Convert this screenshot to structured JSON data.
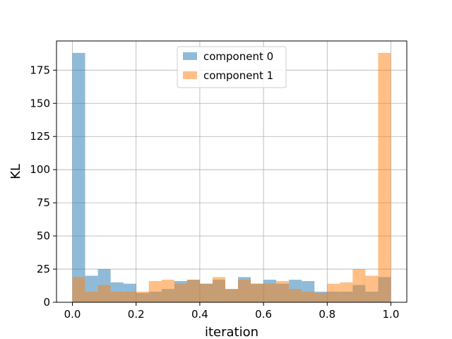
{
  "chart_data": {
    "type": "bar",
    "subtype": "overlapping-histogram",
    "title": "",
    "xlabel": "iteration",
    "ylabel": "KL",
    "xlim": [
      -0.05,
      1.05
    ],
    "ylim": [
      0,
      197
    ],
    "grid": true,
    "legend_position": "top-center",
    "bins": 25,
    "bin_width": 0.04,
    "x_ticks": [
      0.0,
      0.2,
      0.4,
      0.6,
      0.8,
      1.0
    ],
    "x_tick_labels": [
      "0.0",
      "0.2",
      "0.4",
      "0.6",
      "0.8",
      "1.0"
    ],
    "y_ticks": [
      0,
      25,
      50,
      75,
      100,
      125,
      150,
      175
    ],
    "y_tick_labels": [
      "0",
      "25",
      "50",
      "75",
      "100",
      "125",
      "150",
      "175"
    ],
    "bin_starts": [
      0.0,
      0.04,
      0.08,
      0.12,
      0.16,
      0.2,
      0.24,
      0.28,
      0.32,
      0.36,
      0.4,
      0.44,
      0.48,
      0.52,
      0.56,
      0.6,
      0.64,
      0.68,
      0.72,
      0.76,
      0.8,
      0.84,
      0.88,
      0.92,
      0.96
    ],
    "series": [
      {
        "name": "component 0",
        "color": "#1f77b4",
        "opacity": 0.5,
        "values": [
          188,
          20,
          25,
          15,
          14,
          7,
          8,
          10,
          16,
          17,
          14,
          17,
          10,
          19,
          14,
          17,
          14,
          17,
          16,
          8,
          8,
          8,
          13,
          8,
          19
        ]
      },
      {
        "name": "component 1",
        "color": "#ff7f0e",
        "opacity": 0.5,
        "values": [
          19,
          8,
          13,
          8,
          8,
          8,
          16,
          17,
          14,
          17,
          14,
          19,
          10,
          17,
          14,
          14,
          16,
          10,
          8,
          7,
          14,
          15,
          25,
          20,
          188
        ]
      }
    ]
  }
}
